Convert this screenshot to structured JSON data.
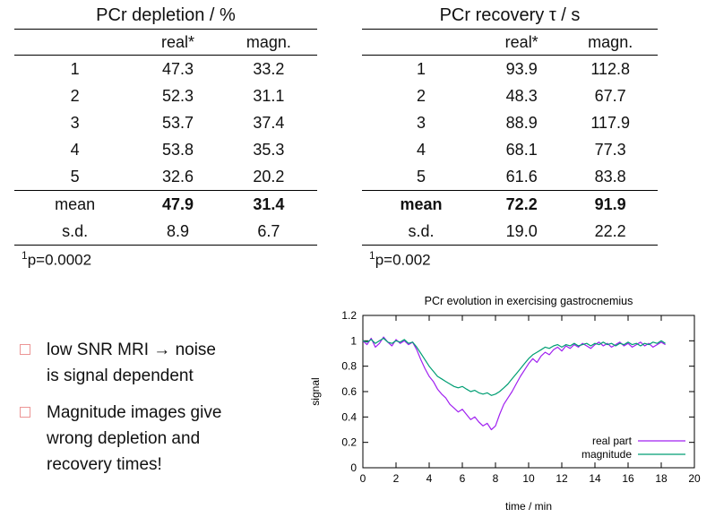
{
  "slide": {
    "background": "#ffffff"
  },
  "colors": {
    "bullet_square": "#ec9595",
    "rule": "#000000"
  },
  "tables": [
    {
      "title": "PCr depletion / %",
      "columns": [
        "",
        "real*",
        "magn."
      ],
      "body_rows": [
        {
          "label": "1",
          "values": [
            "47.3",
            "33.2"
          ]
        },
        {
          "label": "2",
          "values": [
            "52.3",
            "31.1"
          ]
        },
        {
          "label": "3",
          "values": [
            "53.7",
            "37.4"
          ]
        },
        {
          "label": "4",
          "values": [
            "53.8",
            "35.3"
          ]
        },
        {
          "label": "5",
          "values": [
            "32.6",
            "20.2"
          ]
        }
      ],
      "summary_rows": [
        {
          "label": "mean",
          "values": [
            "47.9",
            "31.4"
          ],
          "bold_values": true,
          "bold_label": false
        },
        {
          "label": "s.d.",
          "values": [
            "8.9",
            "6.7"
          ],
          "bold_values": false,
          "bold_label": false
        }
      ],
      "footnote_marker": "1",
      "footnote_text": "p=0.0002"
    },
    {
      "title": "PCr recovery τ / s",
      "columns": [
        "",
        "real*",
        "magn."
      ],
      "body_rows": [
        {
          "label": "1",
          "values": [
            "93.9",
            "112.8"
          ]
        },
        {
          "label": "2",
          "values": [
            "48.3",
            "67.7"
          ]
        },
        {
          "label": "3",
          "values": [
            "88.9",
            "117.9"
          ]
        },
        {
          "label": "4",
          "values": [
            "68.1",
            "77.3"
          ]
        },
        {
          "label": "5",
          "values": [
            "61.6",
            "83.8"
          ]
        }
      ],
      "summary_rows": [
        {
          "label": "mean",
          "values": [
            "72.2",
            "91.9"
          ],
          "bold_values": true,
          "bold_label": true
        },
        {
          "label": "s.d.",
          "values": [
            "19.0",
            "22.2"
          ],
          "bold_values": false,
          "bold_label": false
        }
      ],
      "footnote_marker": "1",
      "footnote_text": "p=0.002"
    }
  ],
  "bullets": [
    {
      "lines": [
        "low SNR MRI → noise",
        "is signal dependent"
      ]
    },
    {
      "lines": [
        "Magnitude images give",
        "wrong depletion and",
        "recovery times!"
      ]
    }
  ],
  "chart_data": {
    "type": "line",
    "title": "PCr evolution in exercising gastrocnemius",
    "xlabel": "time / min",
    "ylabel": "signal",
    "xlim": [
      0,
      20
    ],
    "ylim": [
      0,
      1.2
    ],
    "x_ticks": [
      0,
      2,
      4,
      6,
      8,
      10,
      12,
      14,
      16,
      18,
      20
    ],
    "y_ticks": [
      0,
      0.2,
      0.4,
      0.6,
      0.8,
      1,
      1.2
    ],
    "y_tick_labels": [
      "0",
      "0.2",
      "0.4",
      "0.6",
      "0.8",
      "1",
      "1.2"
    ],
    "grid": false,
    "legend_position": "bottom-right",
    "x": [
      0,
      0.25,
      0.5,
      0.75,
      1,
      1.25,
      1.5,
      1.75,
      2,
      2.25,
      2.5,
      2.75,
      3,
      3.25,
      3.5,
      3.75,
      4,
      4.25,
      4.5,
      4.75,
      5,
      5.25,
      5.5,
      5.75,
      6,
      6.25,
      6.5,
      6.75,
      7,
      7.25,
      7.5,
      7.75,
      8,
      8.25,
      8.5,
      8.75,
      9,
      9.25,
      9.5,
      9.75,
      10,
      10.25,
      10.5,
      10.75,
      11,
      11.25,
      11.5,
      11.75,
      12,
      12.25,
      12.5,
      12.75,
      13,
      13.25,
      13.5,
      13.75,
      14,
      14.25,
      14.5,
      14.75,
      15,
      15.25,
      15.5,
      15.75,
      16,
      16.25,
      16.5,
      16.75,
      17,
      17.25,
      17.5,
      17.75,
      18,
      18.25
    ],
    "series": [
      {
        "name": "real part",
        "color": "#a020f0",
        "values": [
          1.0,
          0.97,
          1.02,
          0.95,
          0.98,
          1.03,
          0.99,
          0.96,
          1.01,
          0.98,
          1.0,
          0.97,
          0.99,
          0.93,
          0.85,
          0.78,
          0.72,
          0.68,
          0.62,
          0.58,
          0.55,
          0.5,
          0.47,
          0.44,
          0.46,
          0.42,
          0.38,
          0.4,
          0.36,
          0.33,
          0.35,
          0.3,
          0.33,
          0.42,
          0.5,
          0.55,
          0.6,
          0.66,
          0.72,
          0.77,
          0.82,
          0.86,
          0.83,
          0.88,
          0.91,
          0.89,
          0.93,
          0.95,
          0.92,
          0.96,
          0.94,
          0.97,
          0.95,
          0.98,
          0.96,
          0.94,
          0.97,
          0.99,
          0.96,
          0.98,
          0.95,
          0.97,
          0.99,
          0.96,
          0.98,
          0.95,
          0.97,
          0.99,
          0.96,
          0.98,
          0.95,
          0.97,
          0.99,
          0.97
        ]
      },
      {
        "name": "magnitude",
        "color": "#009e73",
        "values": [
          1.0,
          0.99,
          1.01,
          0.98,
          1.0,
          1.02,
          0.99,
          0.98,
          1.0,
          0.99,
          1.01,
          0.98,
          0.99,
          0.95,
          0.9,
          0.85,
          0.8,
          0.76,
          0.72,
          0.7,
          0.68,
          0.66,
          0.64,
          0.63,
          0.64,
          0.62,
          0.6,
          0.61,
          0.59,
          0.58,
          0.59,
          0.57,
          0.58,
          0.6,
          0.63,
          0.66,
          0.7,
          0.74,
          0.78,
          0.82,
          0.86,
          0.89,
          0.91,
          0.93,
          0.95,
          0.94,
          0.96,
          0.97,
          0.95,
          0.97,
          0.96,
          0.98,
          0.96,
          0.97,
          0.98,
          0.96,
          0.98,
          0.97,
          0.99,
          0.97,
          0.98,
          0.96,
          0.98,
          0.97,
          0.99,
          0.97,
          0.98,
          0.96,
          0.98,
          0.97,
          0.99,
          0.98,
          1.0,
          0.98
        ]
      }
    ]
  }
}
